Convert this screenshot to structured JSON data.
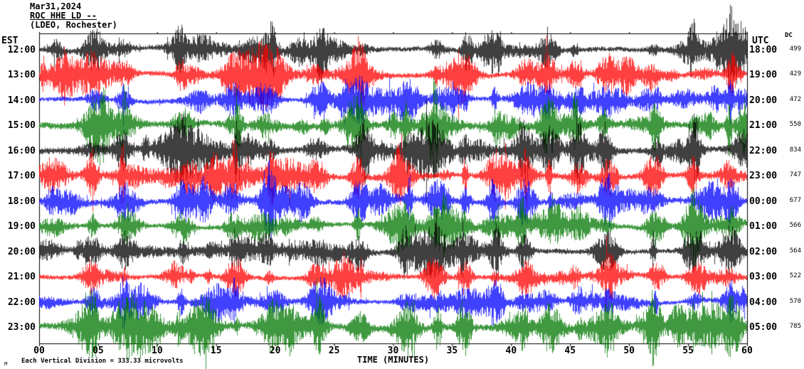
{
  "header": {
    "date": "Mar31,2024",
    "station": "ROC HHE LD --",
    "location": "(LDEO, Rochester)"
  },
  "axes": {
    "left_label": "EST",
    "right_label": "UTC",
    "dc_label": "DC",
    "xlabel": "TIME (MINUTES)",
    "x_ticks": [
      "00",
      "05",
      "10",
      "15",
      "20",
      "25",
      "30",
      "35",
      "40",
      "45",
      "50",
      "55",
      "60"
    ]
  },
  "footer": {
    "scale_note": "Each Vertical Division =  333.33 microvolts",
    "corner_mark": "M"
  },
  "colors": {
    "black": "#000000",
    "red": "#ff0000",
    "blue": "#0000ff",
    "green": "#007700",
    "frame": "#000000"
  },
  "chart_data": {
    "type": "line",
    "title": "ROC HHE LD -- (LDEO, Rochester) helicorder seismogram Mar31,2024",
    "xlabel": "TIME (MINUTES)",
    "x_range": [
      0,
      60
    ],
    "y_unit": "Each vertical division = 333.33 microvolts",
    "legend_position": "none",
    "grid": false,
    "rows": [
      {
        "est": "12:00",
        "utc": "18:00",
        "dc": "499",
        "color": "black"
      },
      {
        "est": "13:00",
        "utc": "19:00",
        "dc": "429",
        "color": "red"
      },
      {
        "est": "14:00",
        "utc": "20:00",
        "dc": "472",
        "color": "blue"
      },
      {
        "est": "15:00",
        "utc": "21:00",
        "dc": "550",
        "color": "green"
      },
      {
        "est": "16:00",
        "utc": "22:00",
        "dc": "834",
        "color": "black"
      },
      {
        "est": "17:00",
        "utc": "23:00",
        "dc": "747",
        "color": "red"
      },
      {
        "est": "18:00",
        "utc": "00:00",
        "dc": "677",
        "color": "blue"
      },
      {
        "est": "19:00",
        "utc": "01:00",
        "dc": "566",
        "color": "green"
      },
      {
        "est": "20:00",
        "utc": "02:00",
        "dc": "564",
        "color": "black"
      },
      {
        "est": "21:00",
        "utc": "03:00",
        "dc": "522",
        "color": "red"
      },
      {
        "est": "22:00",
        "utc": "04:00",
        "dc": "570",
        "color": "blue"
      },
      {
        "est": "23:00",
        "utc": "05:00",
        "dc": "785",
        "color": "green"
      }
    ],
    "note": "12 one-hour seismic waveform traces of continuous noise with repeated burst events; individual sample values not readable from the plot"
  }
}
